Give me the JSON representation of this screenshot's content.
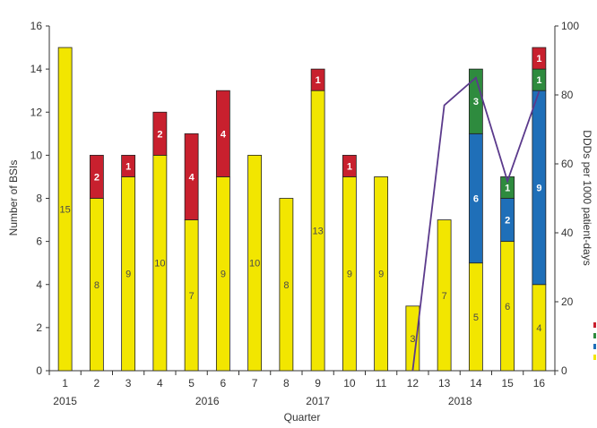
{
  "chart_data": {
    "type": "bar",
    "stacked": true,
    "categories": [
      "1",
      "2",
      "3",
      "4",
      "5",
      "6",
      "7",
      "8",
      "9",
      "10",
      "11",
      "12",
      "13",
      "14",
      "15",
      "16"
    ],
    "year_labels": [
      {
        "label": "2015",
        "at_category": "1"
      },
      {
        "label": "2016",
        "at_category": "5.5"
      },
      {
        "label": "2017",
        "at_category": "9"
      },
      {
        "label": "2018",
        "at_category": "13.5"
      }
    ],
    "xlabel": "Quarter",
    "ylabel": "Number of BSIs",
    "y2label": "DDDs per 1000 patient-days",
    "ylim": [
      0,
      16
    ],
    "yticks": [
      0,
      2,
      4,
      6,
      8,
      10,
      12,
      14,
      16
    ],
    "y2lim": [
      0,
      100
    ],
    "y2ticks": [
      0,
      20,
      40,
      60,
      80,
      100
    ],
    "series": [
      {
        "color": "#f2e600",
        "label_color": "#4a4a4a",
        "values": [
          15,
          8,
          9,
          10,
          7,
          9,
          10,
          8,
          13,
          9,
          9,
          3,
          7,
          5,
          6,
          4
        ]
      },
      {
        "color": "#1f6fb8",
        "label_color": "#ffffff",
        "values": [
          0,
          0,
          0,
          0,
          0,
          0,
          0,
          0,
          0,
          0,
          0,
          0,
          0,
          6,
          2,
          9
        ]
      },
      {
        "color": "#2e8b3e",
        "label_color": "#ffffff",
        "values": [
          0,
          0,
          0,
          0,
          0,
          0,
          0,
          0,
          0,
          0,
          0,
          0,
          0,
          3,
          1,
          1
        ]
      },
      {
        "color": "#c8202e",
        "label_color": "#ffffff",
        "values": [
          0,
          2,
          1,
          2,
          4,
          4,
          0,
          0,
          1,
          1,
          0,
          0,
          0,
          0,
          0,
          1
        ]
      }
    ],
    "line": {
      "color": "#5b3a8c",
      "x": [
        "12",
        "13",
        "14",
        "15",
        "16"
      ],
      "values": [
        0,
        77,
        85,
        55,
        81
      ]
    },
    "legend_swatches": [
      "#c8202e",
      "#2e8b3e",
      "#1f6fb8",
      "#f2e600"
    ]
  }
}
